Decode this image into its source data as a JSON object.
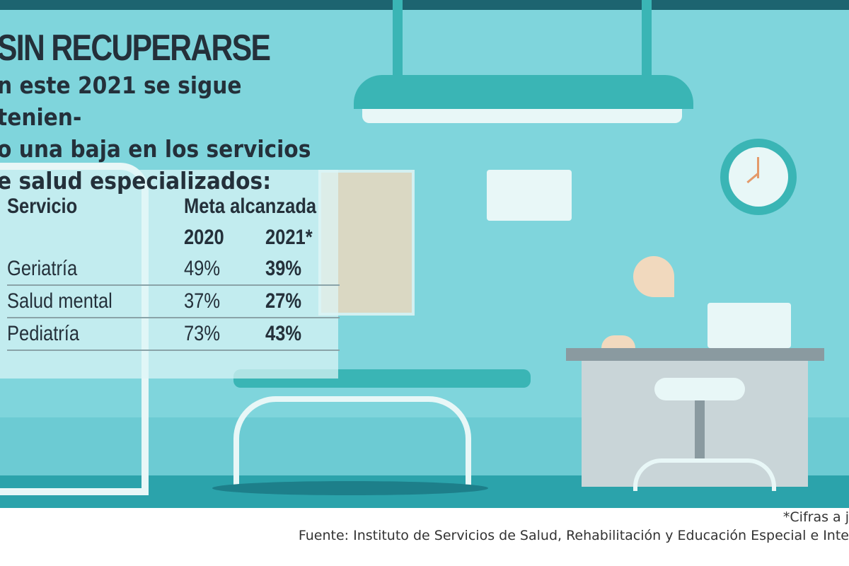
{
  "title": "SIN RECUPERARSE",
  "subtitle": "n este 2021 se sigue tenien- o una baja en los servicios e salud especializados:",
  "subtitle_lines": [
    "n este 2021 se sigue tenien-",
    "o una baja en los servicios",
    "e salud especializados:"
  ],
  "table": {
    "col_service": "Servicio",
    "col_group": "Meta alcanzada",
    "years": [
      "2020",
      "2021*"
    ],
    "rows": [
      {
        "service": "Geriatría",
        "v2020": "49%",
        "v2021": "39%"
      },
      {
        "service": "Salud mental",
        "v2020": "37%",
        "v2021": "27%"
      },
      {
        "service": "Pediatría",
        "v2020": "73%",
        "v2021": "43%"
      }
    ]
  },
  "footnote": "*Cifras a j",
  "source": "Fuente: Instituto de Servicios de Salud, Rehabilitación y Educación Especial e Inte",
  "chart_data": {
    "type": "table",
    "columns": [
      "Servicio",
      "2020",
      "2021*"
    ],
    "categories": [
      "Geriatría",
      "Salud mental",
      "Pediatría"
    ],
    "series": [
      {
        "name": "2020",
        "values": [
          49,
          37,
          73
        ]
      },
      {
        "name": "2021*",
        "values": [
          39,
          27,
          43
        ]
      }
    ]
  },
  "colors": {
    "background": "#7fd5dc",
    "top_bar": "#1d6470",
    "accent": "#3ab5b5",
    "text": "#24303a"
  }
}
